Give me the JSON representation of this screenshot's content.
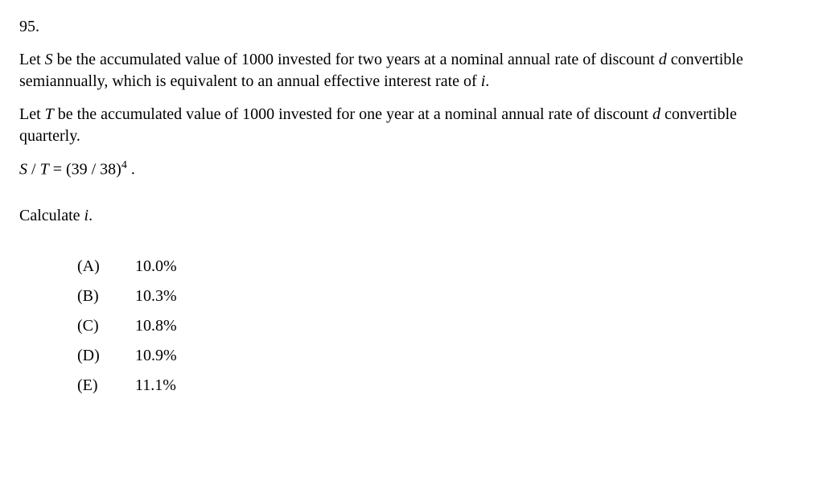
{
  "problem_number": "95.",
  "paragraph1_prefix": "Let ",
  "paragraph1_var1": "S",
  "paragraph1_mid1": " be the accumulated value of 1000 invested for two years at a nominal annual rate of discount ",
  "paragraph1_var2": "d",
  "paragraph1_mid2": " convertible semiannually, which is equivalent to an annual effective interest rate of ",
  "paragraph1_var3": "i",
  "paragraph1_suffix": ".",
  "paragraph2_prefix": "Let ",
  "paragraph2_var1": "T",
  "paragraph2_mid1": " be the accumulated value of 1000 invested for one year at a nominal annual rate of discount ",
  "paragraph2_var2": "d",
  "paragraph2_suffix": " convertible quarterly.",
  "equation_lhs_var1": "S",
  "equation_slash": " / ",
  "equation_lhs_var2": "T",
  "equation_eq": " = (39 / 38)",
  "equation_sup": "4",
  "equation_period": " .",
  "instruction_prefix": "Calculate ",
  "instruction_var": "i",
  "instruction_suffix": ".",
  "choices": {
    "A": {
      "letter": "(A)",
      "value": "10.0%"
    },
    "B": {
      "letter": "(B)",
      "value": "10.3%"
    },
    "C": {
      "letter": "(C)",
      "value": "10.8%"
    },
    "D": {
      "letter": "(D)",
      "value": "10.9%"
    },
    "E": {
      "letter": "(E)",
      "value": "11.1%"
    }
  }
}
